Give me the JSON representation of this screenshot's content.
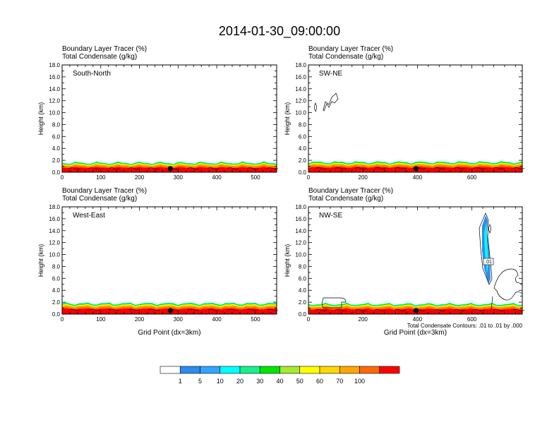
{
  "figure": {
    "title": "2014-01-30_09:00:00"
  },
  "panel_header": {
    "line1": "Boundary Layer Tracer   (%)",
    "line2": "Total Condensate   (g/kg)"
  },
  "contour_note": "Total Condensate Contours: .01 to .01 by .000",
  "contour_label": ".01",
  "colorbar": {
    "labels": [
      "1",
      "5",
      "10",
      "20",
      "30",
      "40",
      "50",
      "60",
      "70",
      "100"
    ],
    "colors": [
      "#ffffff",
      "#2e8bef",
      "#34a3ff",
      "#00ffff",
      "#19f08c",
      "#00e600",
      "#a3ec2c",
      "#ffff00",
      "#ffd700",
      "#ffa500",
      "#ff6a00",
      "#ff0000"
    ]
  },
  "chart_data": [
    {
      "type": "contour-cross-section",
      "panel_label": "South-North",
      "title": "Boundary Layer Tracer   (%)",
      "subtitle": "Total Condensate   (g/kg)",
      "xlabel": "",
      "ylabel": "Height (km)",
      "xlim": [
        0,
        555
      ],
      "ylim": [
        0,
        18
      ],
      "xticks": [
        0,
        100,
        200,
        300,
        400,
        500
      ],
      "yticks": [
        0,
        2,
        4,
        6,
        8,
        10,
        12,
        14,
        16,
        18
      ],
      "marker_x": 280,
      "bl_top_km": 1.6
    },
    {
      "type": "contour-cross-section",
      "panel_label": "SW-NE",
      "title": "Boundary Layer Tracer   (%)",
      "subtitle": "Total Condensate   (g/kg)",
      "xlabel": "",
      "ylabel": "Height (km)",
      "xlim": [
        0,
        785
      ],
      "ylim": [
        0,
        18
      ],
      "xticks": [
        0,
        200,
        400,
        600
      ],
      "yticks": [
        0,
        2,
        4,
        6,
        8,
        10,
        12,
        14,
        16,
        18
      ],
      "marker_x": 395,
      "bl_top_km": 1.7
    },
    {
      "type": "contour-cross-section",
      "panel_label": "West-East",
      "title": "Boundary Layer Tracer   (%)",
      "subtitle": "Total Condensate   (g/kg)",
      "xlabel": "Grid Point (dx=3km)",
      "ylabel": "Height (km)",
      "xlim": [
        0,
        555
      ],
      "ylim": [
        0,
        18
      ],
      "xticks": [
        0,
        100,
        200,
        300,
        400,
        500
      ],
      "yticks": [
        0,
        2,
        4,
        6,
        8,
        10,
        12,
        14,
        16,
        18
      ],
      "marker_x": 280,
      "bl_top_km": 1.8
    },
    {
      "type": "contour-cross-section",
      "panel_label": "NW-SE",
      "title": "Boundary Layer Tracer   (%)",
      "subtitle": "Total Condensate   (g/kg)",
      "xlabel": "Grid Point (dx=3km)",
      "ylabel": "Height (km)",
      "xlim": [
        0,
        785
      ],
      "ylim": [
        0,
        18
      ],
      "xticks": [
        0,
        200,
        400,
        600
      ],
      "yticks": [
        0,
        2,
        4,
        6,
        8,
        10,
        12,
        14,
        16,
        18
      ],
      "marker_x": 395,
      "bl_top_km": 1.7
    }
  ]
}
